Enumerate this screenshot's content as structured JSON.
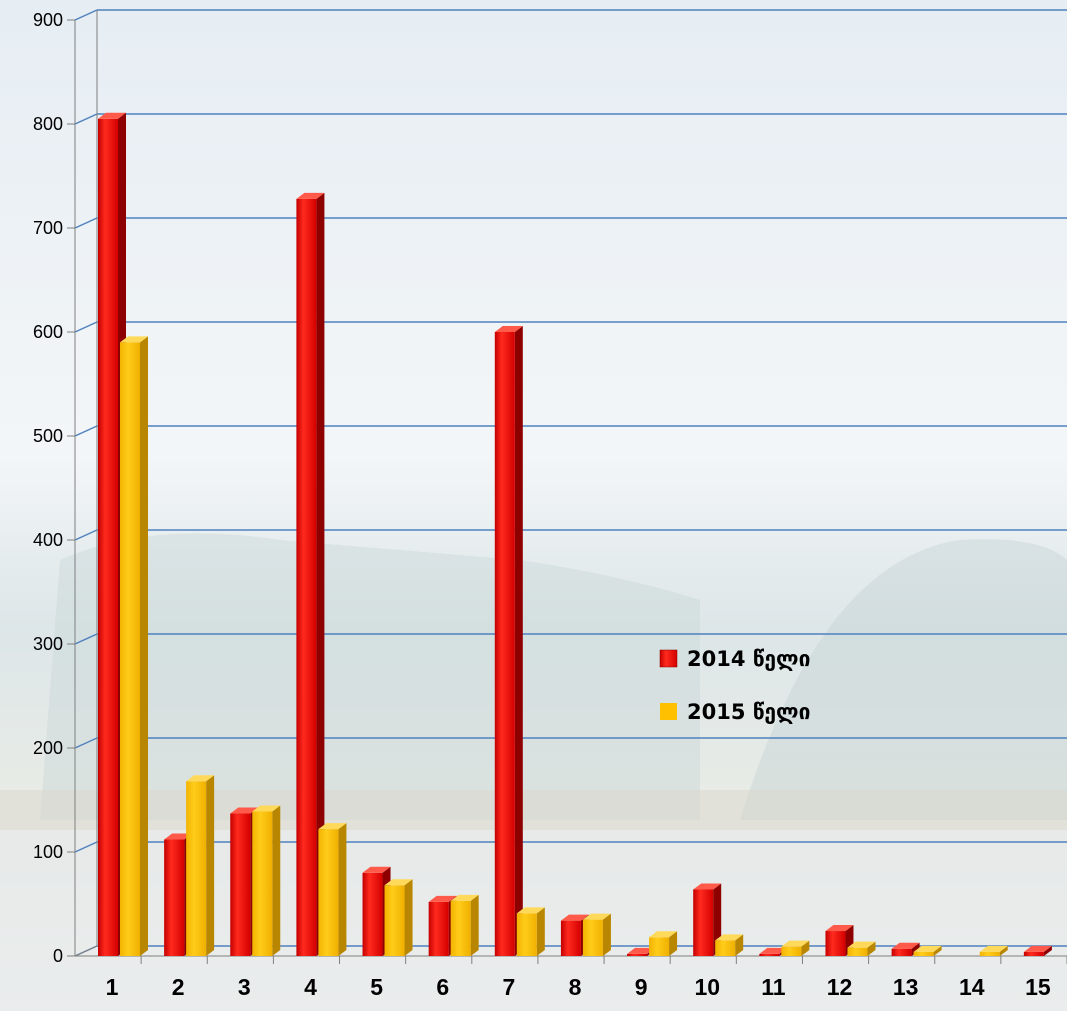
{
  "chart_data": {
    "type": "bar",
    "categories": [
      "1",
      "2",
      "3",
      "4",
      "5",
      "6",
      "7",
      "8",
      "9",
      "10",
      "11",
      "12",
      "13",
      "14",
      "15"
    ],
    "series": [
      {
        "name": "2014 წელი",
        "color": "#e8170f",
        "values": [
          805,
          112,
          137,
          728,
          80,
          52,
          600,
          34,
          2,
          64,
          2,
          24,
          7,
          0,
          4
        ]
      },
      {
        "name": "2015 წელი",
        "color": "#ffc000",
        "values": [
          590,
          168,
          139,
          122,
          68,
          53,
          41,
          35,
          18,
          15,
          9,
          8,
          4,
          4,
          0
        ]
      }
    ],
    "yticks": [
      "0",
      "100",
      "200",
      "300",
      "400",
      "500",
      "600",
      "700",
      "800",
      "900"
    ],
    "ylim": [
      0,
      900
    ],
    "grid": true,
    "gridline_color": "#4f81bd",
    "legend_position": "center-right",
    "title": "",
    "xlabel": "",
    "ylabel": ""
  }
}
